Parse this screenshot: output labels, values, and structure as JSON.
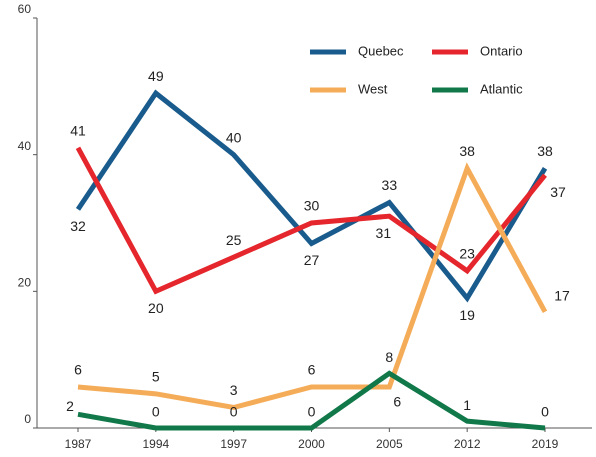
{
  "chart_data": {
    "type": "line",
    "categories": [
      "1987",
      "1994",
      "1997",
      "2000",
      "2005",
      "2012",
      "2019"
    ],
    "series": [
      {
        "name": "Quebec",
        "color": "#185b8c",
        "values": [
          32,
          49,
          40,
          27,
          33,
          19,
          38
        ]
      },
      {
        "name": "Ontario",
        "color": "#e5262c",
        "values": [
          41,
          20,
          25,
          30,
          31,
          23,
          37
        ]
      },
      {
        "name": "West",
        "color": "#f5ac58",
        "values": [
          6,
          5,
          3,
          6,
          6,
          38,
          17
        ]
      },
      {
        "name": "Atlantic",
        "color": "#11784a",
        "values": [
          2,
          0,
          0,
          0,
          8,
          1,
          0
        ]
      }
    ],
    "ylim": [
      0,
      60
    ],
    "yticks": [
      0,
      20,
      40,
      60
    ],
    "grid": false,
    "legend": "top-right"
  }
}
